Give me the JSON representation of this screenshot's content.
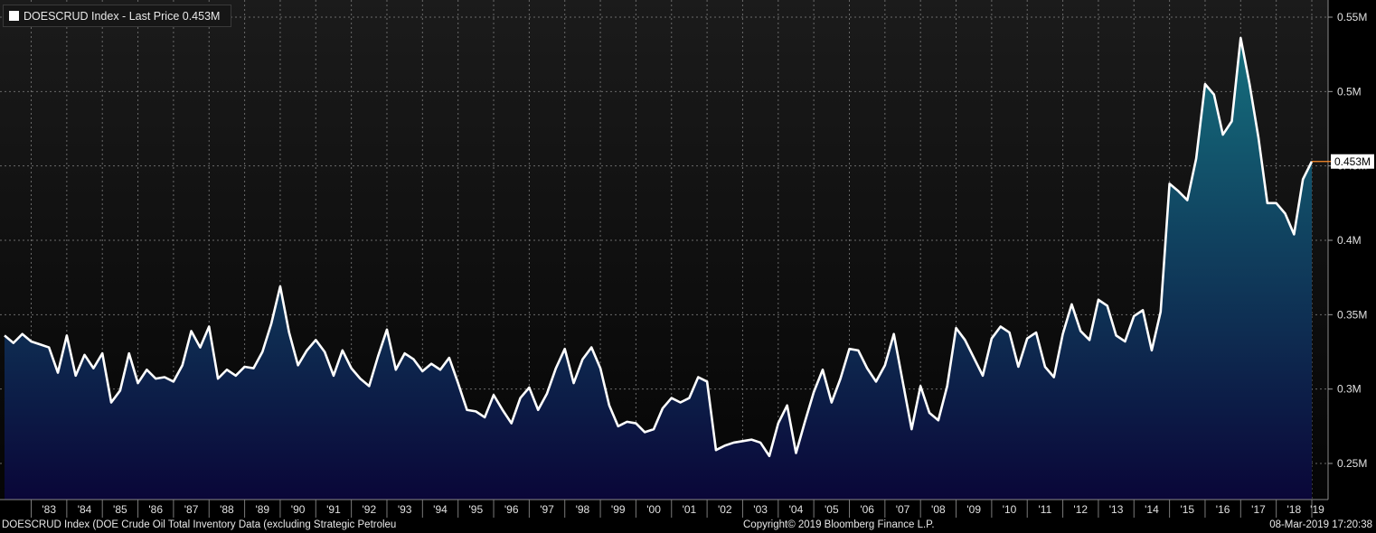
{
  "legend": {
    "text": "DOESCRUD Index - Last Price 0.453M",
    "swatch_color": "#ffffff"
  },
  "footer": {
    "description": "DOESCRUD Index (DOE Crude Oil Total Inventory Data (excluding Strategic Petroleu",
    "copyright": "Copyright© 2019 Bloomberg Finance L.P.",
    "timestamp": "08-Mar-2019 17:20:38"
  },
  "chart_data": {
    "type": "area",
    "y_unit": "M",
    "ylim": [
      0.225,
      0.56
    ],
    "yticks": [
      0.25,
      0.3,
      0.35,
      0.4,
      0.45,
      0.5,
      0.55
    ],
    "ytick_labels": [
      "0.25M",
      "0.3M",
      "0.35M",
      "0.4M",
      "0.45M",
      "0.5M",
      "0.55M"
    ],
    "x_labels": [
      "'83",
      "'84",
      "'85",
      "'86",
      "'87",
      "'88",
      "'89",
      "'90",
      "'91",
      "'92",
      "'93",
      "'94",
      "'95",
      "'96",
      "'97",
      "'98",
      "'99",
      "'00",
      "'01",
      "'02",
      "'03",
      "'04",
      "'05",
      "'06",
      "'07",
      "'08",
      "'09",
      "'10",
      "'11",
      "'12",
      "'13",
      "'14",
      "'15",
      "'16",
      "'17",
      "'18",
      "'19"
    ],
    "x_start_year": 1982.25,
    "x_end_year": 2019.0,
    "values": [
      0.336,
      0.331,
      0.337,
      0.332,
      0.33,
      0.328,
      0.311,
      0.336,
      0.309,
      0.323,
      0.314,
      0.324,
      0.291,
      0.299,
      0.324,
      0.304,
      0.313,
      0.307,
      0.308,
      0.305,
      0.316,
      0.339,
      0.328,
      0.342,
      0.307,
      0.313,
      0.309,
      0.315,
      0.314,
      0.325,
      0.344,
      0.369,
      0.338,
      0.316,
      0.326,
      0.333,
      0.325,
      0.309,
      0.326,
      0.314,
      0.307,
      0.302,
      0.322,
      0.34,
      0.313,
      0.324,
      0.32,
      0.312,
      0.317,
      0.313,
      0.321,
      0.304,
      0.286,
      0.285,
      0.281,
      0.296,
      0.286,
      0.277,
      0.294,
      0.301,
      0.286,
      0.297,
      0.314,
      0.327,
      0.304,
      0.32,
      0.328,
      0.314,
      0.289,
      0.275,
      0.278,
      0.277,
      0.271,
      0.273,
      0.287,
      0.294,
      0.291,
      0.294,
      0.308,
      0.305,
      0.259,
      0.262,
      0.264,
      0.265,
      0.266,
      0.264,
      0.255,
      0.277,
      0.289,
      0.257,
      0.278,
      0.298,
      0.313,
      0.291,
      0.307,
      0.327,
      0.326,
      0.314,
      0.305,
      0.316,
      0.337,
      0.305,
      0.273,
      0.302,
      0.284,
      0.279,
      0.302,
      0.341,
      0.333,
      0.321,
      0.309,
      0.334,
      0.342,
      0.338,
      0.315,
      0.334,
      0.338,
      0.315,
      0.308,
      0.337,
      0.357,
      0.339,
      0.333,
      0.36,
      0.356,
      0.336,
      0.332,
      0.349,
      0.353,
      0.326,
      0.352,
      0.438,
      0.433,
      0.427,
      0.455,
      0.505,
      0.498,
      0.471,
      0.48,
      0.536,
      0.505,
      0.469,
      0.425,
      0.425,
      0.418,
      0.404,
      0.441,
      0.453
    ],
    "last_value_label": "0.453M",
    "colors": {
      "line": "#ffffff",
      "fill_top": "#15707e",
      "fill_bottom": "#0a0638",
      "grid": "#6a6a6a",
      "marker": "#ff8c2a",
      "background_top": "#1b1b1b",
      "background_bottom": "#050505"
    },
    "grid": true
  }
}
